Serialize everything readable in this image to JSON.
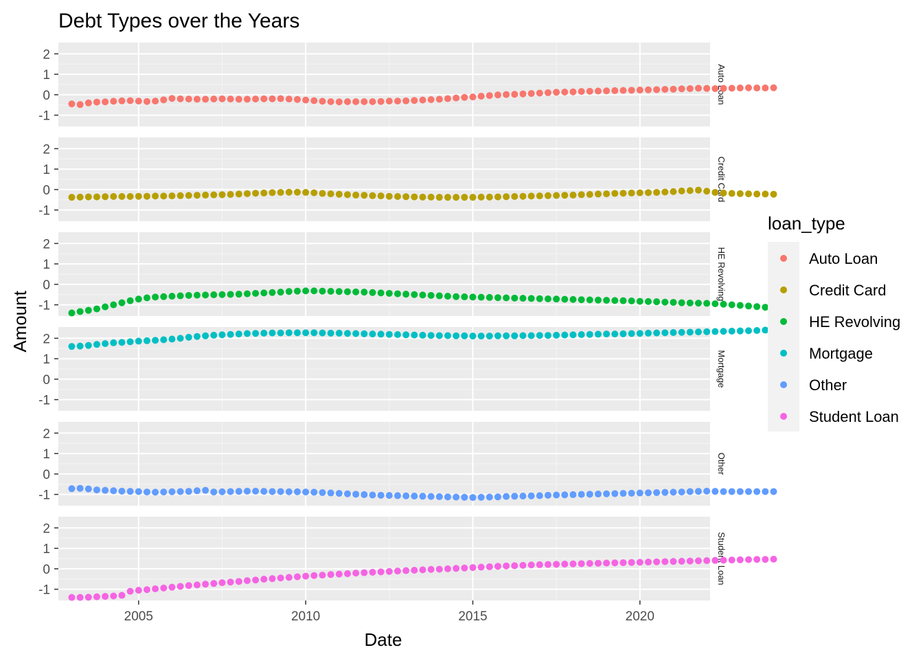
{
  "chart_data": {
    "type": "scatter",
    "title": "Debt Types over the Years",
    "xlabel": "Date",
    "ylabel": "Amount",
    "xlim": [
      2002.6,
      2022.1
    ],
    "ylim": [
      -1.55,
      2.55
    ],
    "x_ticks": [
      2005,
      2010,
      2015,
      2020
    ],
    "y_ticks": [
      -1,
      0,
      1,
      2
    ],
    "grid": true,
    "facet": "rows",
    "legend": {
      "title": "loan_type",
      "position": "right"
    },
    "x_start": 2003.0,
    "x_step": 0.25,
    "series": [
      {
        "name": "Auto Loan",
        "color": "#F8766D",
        "values": [
          -0.45,
          -0.48,
          -0.4,
          -0.36,
          -0.35,
          -0.32,
          -0.3,
          -0.29,
          -0.31,
          -0.33,
          -0.31,
          -0.25,
          -0.18,
          -0.2,
          -0.21,
          -0.22,
          -0.22,
          -0.21,
          -0.2,
          -0.21,
          -0.22,
          -0.22,
          -0.21,
          -0.2,
          -0.2,
          -0.19,
          -0.21,
          -0.23,
          -0.26,
          -0.29,
          -0.32,
          -0.34,
          -0.35,
          -0.34,
          -0.34,
          -0.34,
          -0.34,
          -0.33,
          -0.31,
          -0.31,
          -0.3,
          -0.28,
          -0.26,
          -0.24,
          -0.22,
          -0.19,
          -0.16,
          -0.13,
          -0.11,
          -0.07,
          -0.04,
          -0.01,
          0.01,
          0.02,
          0.04,
          0.06,
          0.08,
          0.1,
          0.12,
          0.13,
          0.14,
          0.16,
          0.17,
          0.18,
          0.19,
          0.2,
          0.21,
          0.22,
          0.23,
          0.24,
          0.25,
          0.26,
          0.27,
          0.29,
          0.3,
          0.32,
          0.31,
          0.3,
          0.31,
          0.32,
          0.33,
          0.34,
          0.33,
          0.33,
          0.34
        ]
      },
      {
        "name": "Credit Card",
        "color": "#B79F00",
        "values": [
          -0.38,
          -0.37,
          -0.36,
          -0.36,
          -0.35,
          -0.34,
          -0.34,
          -0.34,
          -0.33,
          -0.33,
          -0.32,
          -0.32,
          -0.31,
          -0.3,
          -0.29,
          -0.28,
          -0.27,
          -0.26,
          -0.25,
          -0.24,
          -0.22,
          -0.2,
          -0.18,
          -0.17,
          -0.15,
          -0.14,
          -0.13,
          -0.13,
          -0.14,
          -0.16,
          -0.19,
          -0.21,
          -0.23,
          -0.25,
          -0.27,
          -0.28,
          -0.3,
          -0.31,
          -0.33,
          -0.34,
          -0.35,
          -0.36,
          -0.37,
          -0.37,
          -0.38,
          -0.38,
          -0.38,
          -0.38,
          -0.38,
          -0.37,
          -0.37,
          -0.36,
          -0.35,
          -0.34,
          -0.33,
          -0.32,
          -0.31,
          -0.3,
          -0.29,
          -0.28,
          -0.27,
          -0.25,
          -0.24,
          -0.22,
          -0.21,
          -0.19,
          -0.18,
          -0.17,
          -0.16,
          -0.15,
          -0.14,
          -0.12,
          -0.1,
          -0.07,
          -0.05,
          -0.03,
          -0.08,
          -0.14,
          -0.17,
          -0.19,
          -0.2,
          -0.21,
          -0.22,
          -0.22,
          -0.23
        ]
      },
      {
        "name": "HE Revolving",
        "color": "#00BA38",
        "values": [
          -1.4,
          -1.33,
          -1.27,
          -1.2,
          -1.1,
          -1.0,
          -0.9,
          -0.8,
          -0.72,
          -0.66,
          -0.62,
          -0.6,
          -0.58,
          -0.56,
          -0.54,
          -0.53,
          -0.52,
          -0.51,
          -0.5,
          -0.49,
          -0.48,
          -0.46,
          -0.44,
          -0.42,
          -0.4,
          -0.38,
          -0.35,
          -0.33,
          -0.32,
          -0.32,
          -0.33,
          -0.34,
          -0.35,
          -0.36,
          -0.37,
          -0.38,
          -0.4,
          -0.42,
          -0.44,
          -0.46,
          -0.48,
          -0.5,
          -0.52,
          -0.54,
          -0.56,
          -0.58,
          -0.6,
          -0.61,
          -0.62,
          -0.63,
          -0.64,
          -0.65,
          -0.66,
          -0.67,
          -0.68,
          -0.69,
          -0.7,
          -0.71,
          -0.72,
          -0.73,
          -0.74,
          -0.75,
          -0.76,
          -0.77,
          -0.78,
          -0.79,
          -0.8,
          -0.81,
          -0.83,
          -0.84,
          -0.85,
          -0.87,
          -0.88,
          -0.9,
          -0.91,
          -0.92,
          -0.93,
          -0.95,
          -0.97,
          -1.0,
          -1.03,
          -1.06,
          -1.09,
          -1.12,
          -1.15
        ]
      },
      {
        "name": "Mortgage",
        "color": "#00BFC4",
        "values": [
          1.6,
          1.62,
          1.65,
          1.7,
          1.74,
          1.78,
          1.8,
          1.83,
          1.86,
          1.88,
          1.9,
          1.93,
          1.96,
          2.0,
          2.05,
          2.09,
          2.12,
          2.15,
          2.17,
          2.19,
          2.21,
          2.23,
          2.24,
          2.25,
          2.26,
          2.26,
          2.27,
          2.27,
          2.27,
          2.27,
          2.26,
          2.25,
          2.25,
          2.24,
          2.23,
          2.22,
          2.21,
          2.2,
          2.19,
          2.18,
          2.17,
          2.16,
          2.15,
          2.14,
          2.13,
          2.13,
          2.12,
          2.12,
          2.11,
          2.11,
          2.11,
          2.12,
          2.12,
          2.12,
          2.13,
          2.13,
          2.14,
          2.14,
          2.15,
          2.16,
          2.17,
          2.18,
          2.19,
          2.2,
          2.21,
          2.21,
          2.22,
          2.23,
          2.24,
          2.25,
          2.26,
          2.27,
          2.28,
          2.29,
          2.3,
          2.31,
          2.32,
          2.33,
          2.34,
          2.35,
          2.36,
          2.37,
          2.38,
          2.4,
          2.42
        ]
      },
      {
        "name": "Other",
        "color": "#619CFF",
        "values": [
          -0.72,
          -0.7,
          -0.73,
          -0.78,
          -0.8,
          -0.82,
          -0.84,
          -0.85,
          -0.86,
          -0.88,
          -0.89,
          -0.88,
          -0.87,
          -0.86,
          -0.85,
          -0.82,
          -0.8,
          -0.88,
          -0.87,
          -0.86,
          -0.85,
          -0.84,
          -0.84,
          -0.85,
          -0.86,
          -0.86,
          -0.87,
          -0.87,
          -0.88,
          -0.89,
          -0.91,
          -0.93,
          -0.95,
          -0.97,
          -0.99,
          -1.01,
          -1.03,
          -1.04,
          -1.05,
          -1.06,
          -1.07,
          -1.08,
          -1.09,
          -1.1,
          -1.11,
          -1.12,
          -1.13,
          -1.14,
          -1.15,
          -1.14,
          -1.13,
          -1.12,
          -1.1,
          -1.09,
          -1.08,
          -1.07,
          -1.06,
          -1.04,
          -1.03,
          -1.02,
          -1.01,
          -1.0,
          -0.99,
          -0.98,
          -0.97,
          -0.96,
          -0.95,
          -0.94,
          -0.93,
          -0.92,
          -0.91,
          -0.9,
          -0.89,
          -0.88,
          -0.86,
          -0.85,
          -0.84,
          -0.85,
          -0.86,
          -0.86,
          -0.86,
          -0.86,
          -0.86,
          -0.86,
          -0.86
        ]
      },
      {
        "name": "Student Loan",
        "color": "#F564E3",
        "values": [
          -1.4,
          -1.4,
          -1.39,
          -1.37,
          -1.35,
          -1.33,
          -1.3,
          -1.1,
          -1.05,
          -1.02,
          -0.98,
          -0.94,
          -0.9,
          -0.86,
          -0.82,
          -0.79,
          -0.75,
          -0.72,
          -0.68,
          -0.65,
          -0.62,
          -0.58,
          -0.55,
          -0.51,
          -0.48,
          -0.45,
          -0.42,
          -0.39,
          -0.36,
          -0.33,
          -0.31,
          -0.28,
          -0.26,
          -0.24,
          -0.21,
          -0.19,
          -0.17,
          -0.15,
          -0.13,
          -0.11,
          -0.09,
          -0.07,
          -0.05,
          -0.03,
          -0.02,
          0.0,
          0.02,
          0.04,
          0.06,
          0.08,
          0.1,
          0.12,
          0.14,
          0.15,
          0.17,
          0.19,
          0.2,
          0.21,
          0.22,
          0.23,
          0.24,
          0.25,
          0.26,
          0.27,
          0.28,
          0.29,
          0.3,
          0.31,
          0.32,
          0.33,
          0.34,
          0.35,
          0.36,
          0.37,
          0.38,
          0.39,
          0.4,
          0.41,
          0.42,
          0.43,
          0.44,
          0.45,
          0.46,
          0.46,
          0.47
        ]
      }
    ]
  }
}
